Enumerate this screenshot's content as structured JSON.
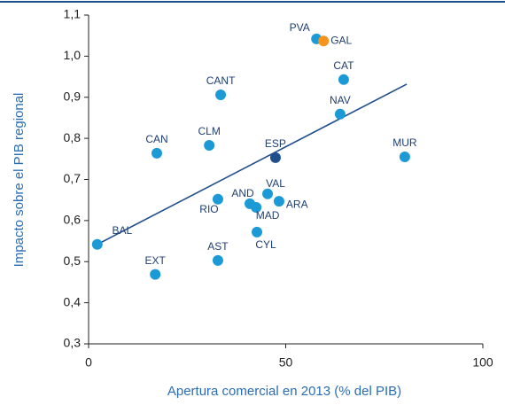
{
  "chart_data": {
    "type": "scatter",
    "x_label": "Apertura comercial en 2013 (% del PIB)",
    "y_label": "Impacto sobre el PIB regional",
    "color": "#1b9ad6",
    "points": [
      {
        "label": "PVA",
        "x": 57.8,
        "y": 1.042
      },
      {
        "label": "GAL",
        "x": 59.6,
        "y": 1.037,
        "color": "#f7941d"
      },
      {
        "label": "CAT",
        "x": 64.7,
        "y": 0.943
      },
      {
        "label": "CANT",
        "x": 33.5,
        "y": 0.906
      },
      {
        "label": "NAV",
        "x": 63.8,
        "y": 0.859
      },
      {
        "label": "CLM",
        "x": 30.6,
        "y": 0.783
      },
      {
        "label": "CAN",
        "x": 17.3,
        "y": 0.764
      },
      {
        "label": "ESP",
        "x": 47.4,
        "y": 0.753,
        "color": "#1f4e8c"
      },
      {
        "label": "MUR",
        "x": 80.2,
        "y": 0.755
      },
      {
        "label": "VAL",
        "x": 45.4,
        "y": 0.665
      },
      {
        "label": "ARA",
        "x": 48.3,
        "y": 0.647
      },
      {
        "label": "AND",
        "x": 40.9,
        "y": 0.641
      },
      {
        "label": "RIO",
        "x": 32.8,
        "y": 0.652
      },
      {
        "label": "MAD",
        "x": 42.5,
        "y": 0.632
      },
      {
        "label": "CYL",
        "x": 42.7,
        "y": 0.572
      },
      {
        "label": "BAL",
        "x": 2.2,
        "y": 0.542
      },
      {
        "label": "AST",
        "x": 32.8,
        "y": 0.503
      },
      {
        "label": "EXT",
        "x": 16.9,
        "y": 0.469
      }
    ],
    "trend_line": {
      "x": [
        2.2,
        80.7
      ],
      "y": [
        0.542,
        0.932
      ],
      "color": "#1f4e8c"
    },
    "xlim": [
      0,
      100
    ],
    "xticks": [
      0,
      50,
      100
    ],
    "ylim": [
      0.3,
      1.1
    ],
    "yticks": [
      {
        "value": 0.3,
        "label": "0,3"
      },
      {
        "value": 0.4,
        "label": "0,4"
      },
      {
        "value": 0.5,
        "label": "0,5"
      },
      {
        "value": 0.6,
        "label": "0,6"
      },
      {
        "value": 0.7,
        "label": "0,7"
      },
      {
        "value": 0.8,
        "label": "0,8"
      },
      {
        "value": 0.9,
        "label": "0,9"
      },
      {
        "value": 1.0,
        "label": "1,0"
      },
      {
        "value": 1.1,
        "label": "1,1"
      }
    ],
    "grid": false
  }
}
